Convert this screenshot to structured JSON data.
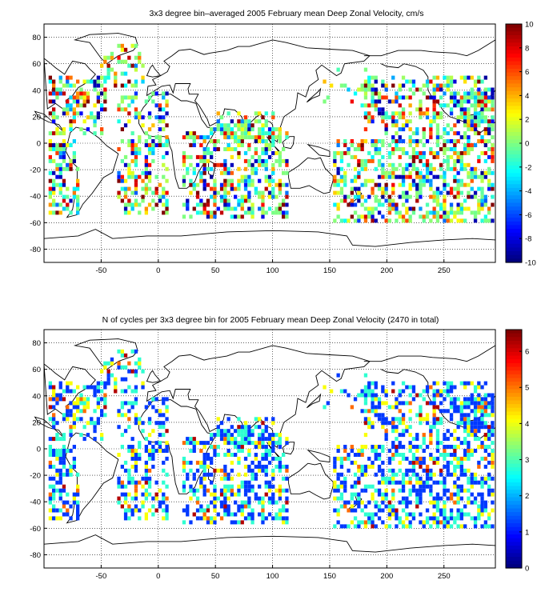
{
  "chart_data": [
    {
      "type": "heatmap",
      "title": "3x3 degree bin–averaged 2005 February mean Deep Zonal Velocity, cm/s",
      "xlim": [
        -100,
        295
      ],
      "ylim": [
        -90,
        90
      ],
      "x_ticks": [
        -50,
        0,
        50,
        100,
        150,
        200,
        250
      ],
      "y_ticks": [
        80,
        60,
        40,
        20,
        0,
        -20,
        -40,
        -60,
        -80
      ],
      "x_tick_labels": [
        "-50",
        "0",
        "50",
        "100",
        "150",
        "200",
        "250"
      ],
      "y_tick_labels": [
        "80",
        "60",
        "40",
        "20",
        "0",
        "-20",
        "-40",
        "-60",
        "-80"
      ],
      "grid": true,
      "grid_style": "dotted",
      "colormap": "jet",
      "clim": [
        -10,
        10
      ],
      "colorbar_ticks": [
        10,
        8,
        6,
        4,
        2,
        0,
        -2,
        -4,
        -6,
        -8,
        -10
      ],
      "colorbar_tick_labels": [
        "10",
        "8",
        "6",
        "4",
        "2",
        "0",
        "-2",
        "-4",
        "-6",
        "-8",
        "-10"
      ],
      "bin_size_deg": 3,
      "field": "zonal_velocity"
    },
    {
      "type": "heatmap",
      "title": "N of cycles per 3x3 degree bin for 2005 February mean Deep Zonal Velocity (2470 in total)",
      "xlim": [
        -100,
        295
      ],
      "ylim": [
        -90,
        90
      ],
      "x_ticks": [
        -50,
        0,
        50,
        100,
        150,
        200,
        250
      ],
      "y_ticks": [
        80,
        60,
        40,
        20,
        0,
        -20,
        -40,
        -60,
        -80
      ],
      "x_tick_labels": [
        "-50",
        "0",
        "50",
        "100",
        "150",
        "200",
        "250"
      ],
      "y_tick_labels": [
        "80",
        "60",
        "40",
        "20",
        "0",
        "-20",
        "-40",
        "-60",
        "-80"
      ],
      "grid": true,
      "grid_style": "dotted",
      "colormap": "jet",
      "clim": [
        0,
        6.6
      ],
      "colorbar_ticks": [
        6,
        5,
        4,
        3,
        2,
        1,
        0
      ],
      "colorbar_tick_labels": [
        "6",
        "5",
        "4",
        "3",
        "2",
        "1",
        "0"
      ],
      "bin_size_deg": 3,
      "field": "cycle_count"
    }
  ]
}
